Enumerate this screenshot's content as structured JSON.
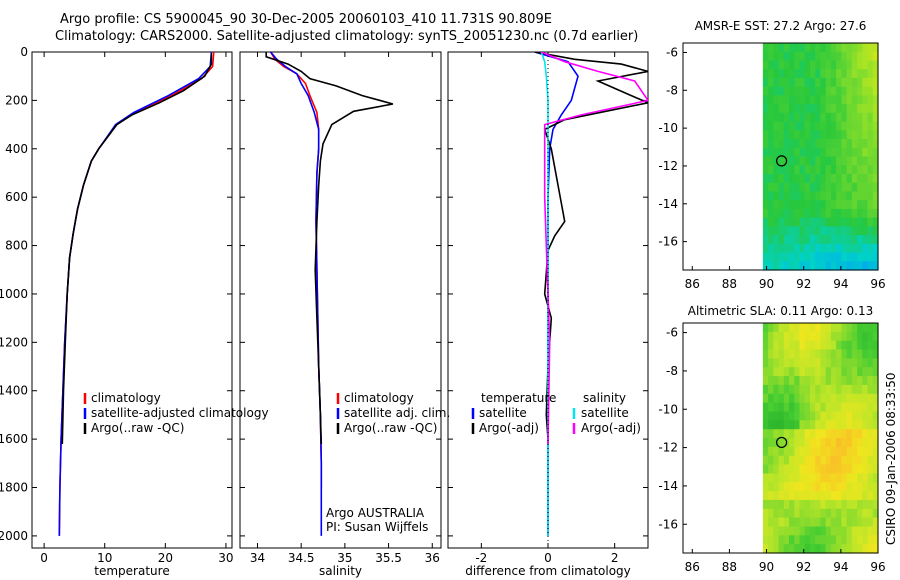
{
  "header": {
    "line1": "Argo profile: CS 5900045_90 30-Dec-2005 20060103_410 11.731S 90.809E",
    "line2": "Climatology: CARS2000. Satellite-adjusted climatology: synTS_20051230.nc (0.7d earlier)"
  },
  "credit": "CSIRO 09-Jan-2006 08:33:50",
  "colors": {
    "climatology": "#ff0000",
    "satellite": "#0000ff",
    "argo": "#000000",
    "sal_satellite": "#00e5ee",
    "sal_argo": "#ff00ff"
  },
  "chart_data": [
    {
      "type": "line",
      "xlabel": "temperature",
      "ylabel": "",
      "xlim": [
        -2,
        31
      ],
      "ylim": [
        2050,
        0
      ],
      "xticks": [
        "0",
        "10",
        "20",
        "30"
      ],
      "yticks": [
        "0",
        "200",
        "400",
        "600",
        "800",
        "1000",
        "1200",
        "1400",
        "1600",
        "1800",
        "2000"
      ],
      "legend": [
        "climatology",
        "satellite-adjusted climatology",
        "Argo(..raw -QC)"
      ],
      "series": [
        {
          "name": "climatology",
          "color": "#ff0000",
          "x": [
            28.0,
            27.8,
            26.0,
            21.0,
            15.0,
            12.0,
            10.5,
            9.0,
            7.8,
            6.5,
            5.5,
            4.8,
            4.2,
            3.8,
            3.4,
            3.1,
            2.8,
            2.6,
            2.5
          ],
          "y": [
            0,
            60,
            110,
            180,
            250,
            300,
            350,
            400,
            450,
            550,
            650,
            750,
            850,
            1000,
            1200,
            1400,
            1600,
            1800,
            2000
          ]
        },
        {
          "name": "satellite-adjusted climatology",
          "color": "#0000ff",
          "x": [
            27.6,
            27.4,
            25.5,
            20.5,
            14.8,
            11.8,
            10.4,
            9.0,
            7.8,
            6.5,
            5.5,
            4.8,
            4.2,
            3.8,
            3.4,
            3.1,
            2.8,
            2.6,
            2.5
          ],
          "y": [
            0,
            60,
            110,
            180,
            250,
            300,
            350,
            400,
            450,
            550,
            650,
            750,
            850,
            1000,
            1200,
            1400,
            1600,
            1800,
            2000
          ]
        },
        {
          "name": "Argo(..raw -QC)",
          "color": "#000000",
          "x": [
            27.6,
            27.6,
            26.5,
            23.0,
            19.0,
            14.5,
            12.0,
            10.5,
            9.0,
            7.8,
            6.5,
            5.5,
            4.8,
            4.2,
            3.8,
            3.5,
            3.2,
            3.0
          ],
          "y": [
            5,
            50,
            100,
            160,
            210,
            260,
            300,
            350,
            400,
            450,
            550,
            650,
            750,
            850,
            1000,
            1200,
            1400,
            1620
          ]
        }
      ]
    },
    {
      "type": "line",
      "xlabel": "salinity",
      "xlim": [
        33.8,
        36.1
      ],
      "ylim": [
        2050,
        0
      ],
      "xticks": [
        "34",
        "34.5",
        "35",
        "35.5",
        "36"
      ],
      "legend": [
        "climatology",
        "satellite adj. clim.",
        "Argo(..raw -QC)"
      ],
      "annotation": [
        "Argo AUSTRALIA",
        "PI: Susan Wijffels"
      ],
      "series": [
        {
          "name": "climatology",
          "color": "#ff0000",
          "x": [
            34.15,
            34.2,
            34.3,
            34.45,
            34.55,
            34.6,
            34.68,
            34.7,
            34.7,
            34.68,
            34.67,
            34.68,
            34.69,
            34.7,
            34.72,
            34.73,
            34.73
          ],
          "y": [
            0,
            30,
            60,
            90,
            130,
            180,
            250,
            320,
            400,
            500,
            700,
            900,
            1100,
            1300,
            1500,
            1700,
            1800
          ]
        },
        {
          "name": "satellite adj. clim.",
          "color": "#0000ff",
          "x": [
            34.15,
            34.22,
            34.32,
            34.45,
            34.5,
            34.58,
            34.65,
            34.7,
            34.7,
            34.68,
            34.67,
            34.68,
            34.69,
            34.7,
            34.72,
            34.73,
            34.73,
            34.73
          ],
          "y": [
            0,
            30,
            60,
            90,
            130,
            180,
            250,
            320,
            400,
            500,
            700,
            900,
            1100,
            1300,
            1500,
            1700,
            1850,
            2000
          ]
        },
        {
          "name": "Argo(..raw -QC)",
          "color": "#000000",
          "x": [
            34.1,
            34.1,
            34.35,
            34.5,
            34.6,
            34.9,
            35.2,
            35.55,
            35.1,
            34.85,
            34.75,
            34.72,
            34.7,
            34.68,
            34.66,
            34.68,
            34.7,
            34.72,
            34.73
          ],
          "y": [
            0,
            20,
            50,
            80,
            110,
            140,
            180,
            215,
            245,
            300,
            380,
            450,
            550,
            700,
            900,
            1100,
            1300,
            1500,
            1620
          ]
        }
      ]
    },
    {
      "type": "line",
      "xlabel": "difference from climatology",
      "xlim": [
        -3,
        3
      ],
      "ylim": [
        2050,
        0
      ],
      "xticks": [
        "-2",
        "0",
        "2"
      ],
      "legend": [
        "temperature",
        "satellite",
        "Argo(-adj)",
        "salinity",
        "satellite",
        "Argo(-adj)"
      ],
      "series": [
        {
          "name": "temperature satellite",
          "color": "#0000ff",
          "x": [
            -0.4,
            0.6,
            0.9,
            0.7,
            0.4,
            0.15,
            0.05,
            0.0,
            0.0,
            0.0,
            0.0,
            0.0,
            0.0
          ],
          "y": [
            0,
            40,
            100,
            200,
            260,
            320,
            400,
            600,
            800,
            1000,
            1400,
            1800,
            2000
          ]
        },
        {
          "name": "temperature Argo(-adj)",
          "color": "#000000",
          "x": [
            -0.4,
            0.8,
            2.2,
            3.0,
            1.5,
            2.5,
            3.0,
            0.5,
            -0.1,
            0.1,
            0.3,
            0.5,
            0.2,
            0.0,
            -0.1,
            0.1,
            0.0,
            -0.05,
            0.0,
            0.0
          ],
          "y": [
            0,
            30,
            50,
            80,
            120,
            180,
            210,
            280,
            320,
            400,
            550,
            700,
            760,
            820,
            1000,
            1100,
            1300,
            1500,
            1600,
            1620
          ]
        },
        {
          "name": "salinity satellite",
          "color": "#00e5ee",
          "x": [
            -0.2,
            -0.1,
            -0.05,
            0.0,
            0.0,
            0.0,
            0.0,
            0.0,
            0.0,
            0.0
          ],
          "y": [
            0,
            40,
            100,
            200,
            400,
            700,
            1000,
            1400,
            1800,
            2000
          ]
        },
        {
          "name": "salinity Argo(-adj)",
          "color": "#ff00ff",
          "x": [
            -0.2,
            0.5,
            1.5,
            2.6,
            3.0,
            1.0,
            -0.1,
            -0.1,
            -0.1,
            -0.05,
            0.0,
            0.05,
            0.0
          ],
          "y": [
            0,
            40,
            80,
            120,
            200,
            260,
            300,
            400,
            600,
            800,
            1000,
            1200,
            1620
          ]
        }
      ]
    },
    {
      "type": "heatmap",
      "title": "AMSR-E SST: 27.2 Argo: 27.6",
      "xlim": [
        85.5,
        96
      ],
      "ylim": [
        -17.5,
        -5.5
      ],
      "xticks": [
        "86",
        "88",
        "90",
        "92",
        "94",
        "96"
      ],
      "yticks": [
        "-6",
        "-8",
        "-10",
        "-12",
        "-14",
        "-16"
      ],
      "marker": {
        "lon": 90.809,
        "lat": -11.731
      },
      "data_lon_range": [
        89.8,
        96
      ]
    },
    {
      "type": "heatmap",
      "title": "Altimetric SLA: 0.11 Argo: 0.13",
      "xlim": [
        85.5,
        96
      ],
      "ylim": [
        -17.5,
        -5.5
      ],
      "xticks": [
        "86",
        "88",
        "90",
        "92",
        "94",
        "96"
      ],
      "yticks": [
        "-6",
        "-8",
        "-10",
        "-12",
        "-14",
        "-16"
      ],
      "marker": {
        "lon": 90.809,
        "lat": -11.731
      },
      "data_lon_range": [
        89.8,
        96
      ]
    }
  ]
}
